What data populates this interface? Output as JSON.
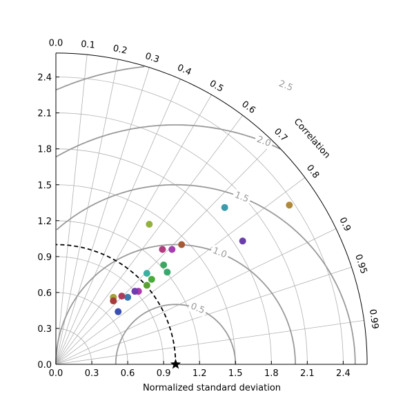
{
  "chart_data": {
    "type": "scatter",
    "title": "",
    "xlabel": "Normalized standard deviation",
    "corr_label": "Correlation",
    "std_max": 2.6,
    "std_ticks": [
      0.0,
      0.3,
      0.6,
      0.9,
      1.2,
      1.5,
      1.8,
      2.1,
      2.4
    ],
    "std_tick_labels": [
      "0.0",
      "0.3",
      "0.6",
      "0.9",
      "1.2",
      "1.5",
      "1.8",
      "2.1",
      "2.4"
    ],
    "corr_ticks": [
      0.0,
      0.1,
      0.2,
      0.3,
      0.4,
      0.5,
      0.6,
      0.7,
      0.8,
      0.9,
      0.95,
      0.99
    ],
    "corr_tick_labels": [
      "0.0",
      "0.1",
      "0.2",
      "0.3",
      "0.4",
      "0.5",
      "0.6",
      "0.7",
      "0.8",
      "0.9",
      "0.95",
      "0.99"
    ],
    "rmsd_contours": [
      0.5,
      1.0,
      1.5,
      2.0,
      2.5
    ],
    "rmsd_labels": [
      "0.5",
      "1.0",
      "1.5",
      "2.0",
      "2.5"
    ],
    "reference": {
      "std": 1.0,
      "corr": 1.0
    },
    "grid": true,
    "points": [
      {
        "x": 1.41,
        "y": 1.31,
        "color": "#3b9aab"
      },
      {
        "x": 1.95,
        "y": 1.33,
        "color": "#b08a3a"
      },
      {
        "x": 1.56,
        "y": 1.03,
        "color": "#6a3faa"
      },
      {
        "x": 0.78,
        "y": 1.17,
        "color": "#93b23c"
      },
      {
        "x": 1.05,
        "y": 1.0,
        "color": "#a35a35"
      },
      {
        "x": 0.89,
        "y": 0.96,
        "color": "#b23c7f"
      },
      {
        "x": 0.97,
        "y": 0.96,
        "color": "#a53cb0"
      },
      {
        "x": 0.9,
        "y": 0.83,
        "color": "#3fa563"
      },
      {
        "x": 0.93,
        "y": 0.77,
        "color": "#3aa86e"
      },
      {
        "x": 0.76,
        "y": 0.76,
        "color": "#3ab0a0"
      },
      {
        "x": 0.8,
        "y": 0.71,
        "color": "#4aaa3a"
      },
      {
        "x": 0.76,
        "y": 0.66,
        "color": "#5aa033"
      },
      {
        "x": 0.69,
        "y": 0.61,
        "color": "#b03aaa"
      },
      {
        "x": 0.66,
        "y": 0.61,
        "color": "#6f3bb0"
      },
      {
        "x": 0.6,
        "y": 0.56,
        "color": "#3a7ab0"
      },
      {
        "x": 0.55,
        "y": 0.57,
        "color": "#b03a5a"
      },
      {
        "x": 0.48,
        "y": 0.56,
        "color": "#a5a03a"
      },
      {
        "x": 0.48,
        "y": 0.53,
        "color": "#a83a3a"
      },
      {
        "x": 0.52,
        "y": 0.44,
        "color": "#3a4fb0"
      }
    ]
  }
}
